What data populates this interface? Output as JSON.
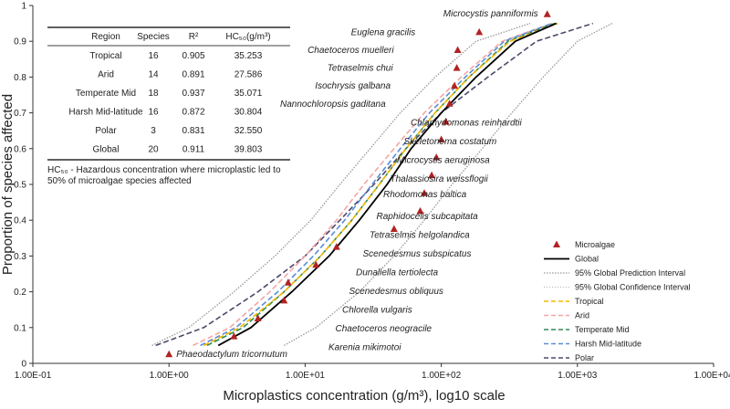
{
  "chart_data": {
    "type": "line",
    "xlabel": "Microplastics concentration (g/m³), log10 scale",
    "ylabel": "Proportion of species affected",
    "x_scale": "log10",
    "xlim": [
      0.1,
      10000
    ],
    "ylim": [
      0,
      1
    ],
    "x_ticks": [
      "1.00E-01",
      "1.00E+00",
      "1.00E+01",
      "1.00E+02",
      "1.00E+03",
      "1.00E+04"
    ],
    "y_ticks": [
      "0",
      "0.1",
      "0.2",
      "0.3",
      "0.4",
      "0.5",
      "0.6",
      "0.7",
      "0.8",
      "0.9",
      "1"
    ],
    "grid": false,
    "legend_position": "right",
    "colors": {
      "microalgae": "#b22222",
      "global": "#000000",
      "interval": "#999999",
      "tropical": "#f5b800",
      "arid": "#f4a6a6",
      "temperate": "#2e8b57",
      "harsh": "#5b8dd6",
      "polar": "#4a4a6a"
    },
    "legend": [
      {
        "key": "microalgae",
        "label": "Microalgae",
        "style": "triangle"
      },
      {
        "key": "global",
        "label": "Global",
        "style": "solid"
      },
      {
        "key": "pi",
        "label": "95% Global Prediction Interval",
        "style": "dotted-dense"
      },
      {
        "key": "ci",
        "label": "95% Global Confidence Interval",
        "style": "dotted-light"
      },
      {
        "key": "tropical",
        "label": "Tropical",
        "style": "dash"
      },
      {
        "key": "arid",
        "label": "Arid",
        "style": "dash"
      },
      {
        "key": "temperate",
        "label": "Temperate Mid",
        "style": "dash"
      },
      {
        "key": "harsh",
        "label": "Harsh Mid-latitude",
        "style": "dash"
      },
      {
        "key": "polar",
        "label": "Polar",
        "style": "dash"
      }
    ],
    "table": {
      "headers": [
        "Region",
        "Species",
        "R²",
        "HC₅₀(g/m³)"
      ],
      "rows": [
        [
          "Tropical",
          "16",
          "0.905",
          "35.253"
        ],
        [
          "Arid",
          "14",
          "0.891",
          "27.586"
        ],
        [
          "Temperate Mid",
          "18",
          "0.937",
          "35.071"
        ],
        [
          "Harsh Mid-latitude",
          "16",
          "0.872",
          "30.804"
        ],
        [
          "Polar",
          "3",
          "0.831",
          "32.550"
        ],
        [
          "Global",
          "20",
          "0.911",
          "39.803"
        ]
      ],
      "note_line1": "HC₅₀ - Hazardous concentration where microplastic led to",
      "note_line2": "50% of microalgae species affected"
    },
    "microalgae_points": [
      {
        "x": 1.0,
        "y": 0.025,
        "label": "Phaeodactylum tricornutum"
      },
      {
        "x": 3.0,
        "y": 0.075,
        "label": "Karenia mikimotoi"
      },
      {
        "x": 4.5,
        "y": 0.125,
        "label": "Chaetoceros neogracile"
      },
      {
        "x": 7.0,
        "y": 0.175,
        "label": "Chlorella vulgaris"
      },
      {
        "x": 7.5,
        "y": 0.225,
        "label": "Scenedesmus obliquus"
      },
      {
        "x": 12.0,
        "y": 0.275,
        "label": "Dunaliella tertiolecta"
      },
      {
        "x": 17.0,
        "y": 0.325,
        "label": "Scenedesmus subspicatus"
      },
      {
        "x": 45.0,
        "y": 0.375,
        "label": "Tetraselmis helgolandica"
      },
      {
        "x": 70.0,
        "y": 0.425,
        "label": "Raphidocelis subcapitata"
      },
      {
        "x": 75.0,
        "y": 0.475,
        "label": "Rhodomonas baltica"
      },
      {
        "x": 85.0,
        "y": 0.525,
        "label": "Thalassiosira weissflogii"
      },
      {
        "x": 92.0,
        "y": 0.575,
        "label": "Microcystis aeruginosa"
      },
      {
        "x": 100.0,
        "y": 0.625,
        "label": "Skeletonema costatum"
      },
      {
        "x": 108.0,
        "y": 0.675,
        "label": "Chlamydomonas reinhardtii"
      },
      {
        "x": 115.0,
        "y": 0.725,
        "label": "Nannochloropsis gaditana"
      },
      {
        "x": 125.0,
        "y": 0.775,
        "label": "Isochrysis galbana"
      },
      {
        "x": 130.0,
        "y": 0.825,
        "label": "Tetraselmis chui"
      },
      {
        "x": 132.0,
        "y": 0.875,
        "label": "Chaetoceros muelleri"
      },
      {
        "x": 190.0,
        "y": 0.925,
        "label": "Euglena gracilis"
      },
      {
        "x": 600.0,
        "y": 0.975,
        "label": "Microcystis panniformis"
      }
    ],
    "series": [
      {
        "key": "global",
        "x": [
          2.3,
          4,
          8,
          15,
          25,
          40,
          60,
          100,
          180,
          350,
          700
        ],
        "y": [
          0.05,
          0.1,
          0.2,
          0.3,
          0.4,
          0.5,
          0.6,
          0.7,
          0.8,
          0.9,
          0.95
        ]
      },
      {
        "key": "tropical",
        "x": [
          1.8,
          3.3,
          7,
          13,
          22,
          35,
          55,
          90,
          160,
          320,
          720
        ],
        "y": [
          0.05,
          0.1,
          0.2,
          0.3,
          0.4,
          0.5,
          0.6,
          0.7,
          0.8,
          0.9,
          0.95
        ]
      },
      {
        "key": "arid",
        "x": [
          1.5,
          2.8,
          5.5,
          10,
          17,
          27,
          45,
          75,
          140,
          280,
          650
        ],
        "y": [
          0.05,
          0.1,
          0.2,
          0.3,
          0.4,
          0.5,
          0.6,
          0.7,
          0.8,
          0.9,
          0.95
        ]
      },
      {
        "key": "temperate",
        "x": [
          1.9,
          3.5,
          7,
          13,
          22,
          35,
          55,
          90,
          160,
          310,
          680
        ],
        "y": [
          0.05,
          0.1,
          0.2,
          0.3,
          0.4,
          0.5,
          0.6,
          0.7,
          0.8,
          0.9,
          0.95
        ]
      },
      {
        "key": "harsh",
        "x": [
          1.7,
          3.1,
          6.3,
          11.5,
          19.5,
          31,
          50,
          82,
          150,
          290,
          650
        ],
        "y": [
          0.05,
          0.1,
          0.2,
          0.3,
          0.4,
          0.5,
          0.6,
          0.7,
          0.8,
          0.9,
          0.95
        ]
      },
      {
        "key": "polar",
        "x": [
          0.8,
          1.8,
          4.5,
          10,
          18,
          32,
          55,
          100,
          220,
          500,
          1300
        ],
        "y": [
          0.05,
          0.1,
          0.2,
          0.3,
          0.4,
          0.5,
          0.6,
          0.7,
          0.8,
          0.9,
          0.95
        ]
      },
      {
        "key": "pi_upper",
        "x": [
          0.75,
          1.4,
          3,
          6,
          11,
          18,
          30,
          50,
          90,
          180,
          450
        ],
        "y": [
          0.05,
          0.1,
          0.2,
          0.3,
          0.4,
          0.5,
          0.6,
          0.7,
          0.8,
          0.9,
          0.95
        ]
      },
      {
        "key": "pi_lower",
        "x": [
          7,
          12,
          25,
          45,
          75,
          120,
          200,
          330,
          560,
          1000,
          1800
        ],
        "y": [
          0.05,
          0.1,
          0.2,
          0.3,
          0.4,
          0.5,
          0.6,
          0.7,
          0.8,
          0.9,
          0.95
        ]
      }
    ]
  }
}
